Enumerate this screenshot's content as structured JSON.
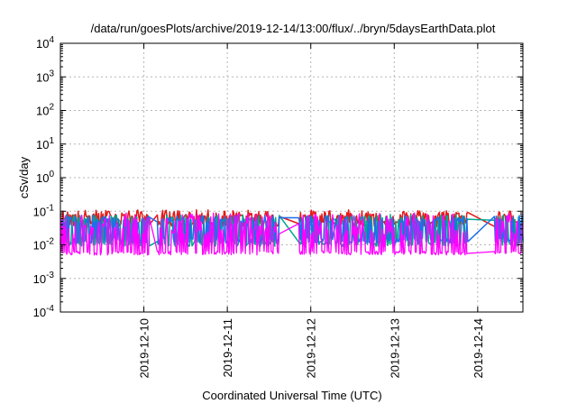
{
  "chart_data": {
    "type": "line",
    "title": "/data/run/goesPlots/archive/2019-12-14/13:00/flux/../bryn/5daysEarthData.plot",
    "xlabel": "Coordinated Universal Time (UTC)",
    "ylabel": "cSv/day",
    "yscale": "log",
    "ylim": [
      0.0001,
      10000
    ],
    "yticks": [
      {
        "base": "10",
        "exp": "-4"
      },
      {
        "base": "10",
        "exp": "-3"
      },
      {
        "base": "10",
        "exp": "-2"
      },
      {
        "base": "10",
        "exp": "-1"
      },
      {
        "base": "10",
        "exp": "0"
      },
      {
        "base": "10",
        "exp": "1"
      },
      {
        "base": "10",
        "exp": "2"
      },
      {
        "base": "10",
        "exp": "3"
      },
      {
        "base": "10",
        "exp": "4"
      }
    ],
    "xlim": [
      "2019-12-09 00:00",
      "2019-12-14 13:00"
    ],
    "xticks": [
      "2019-12-10",
      "2019-12-11",
      "2019-12-12",
      "2019-12-13",
      "2019-12-14"
    ],
    "grid": true,
    "gaps_hours": [
      [
        25.7,
        27.8
      ],
      [
        63.0,
        68.5
      ],
      [
        78.4,
        79.1
      ],
      [
        117.2,
        124.6
      ]
    ],
    "series": [
      {
        "color": "#e41a1c",
        "upper": [
          0.07,
          0.11
        ],
        "lower": [
          0.035,
          0.05
        ]
      },
      {
        "color": "#00a88f",
        "upper": [
          0.05,
          0.08
        ],
        "lower": [
          0.009,
          0.013
        ]
      },
      {
        "color": "#1e6fe8",
        "upper": [
          0.045,
          0.075
        ],
        "lower": [
          0.011,
          0.016
        ]
      },
      {
        "color": "#ff00ff",
        "upper": [
          0.02,
          0.09
        ],
        "lower": [
          0.005,
          0.0065
        ]
      }
    ]
  }
}
